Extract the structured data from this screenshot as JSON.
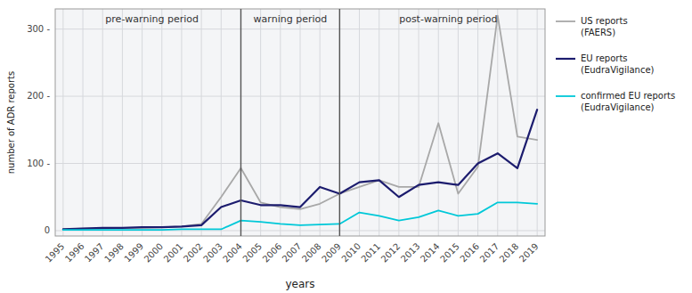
{
  "chart_data": {
    "type": "line",
    "x_label": "years",
    "y_label": "number of ADR reports",
    "x": [
      1995,
      1996,
      1997,
      1998,
      1999,
      2000,
      2001,
      2002,
      2003,
      2004,
      2005,
      2006,
      2007,
      2008,
      2009,
      2010,
      2011,
      2012,
      2013,
      2014,
      2015,
      2016,
      2017,
      2018,
      2019
    ],
    "series": [
      {
        "name": "US reports\n(FAERS)",
        "color": "#a8a8a8",
        "values": [
          2,
          3,
          3,
          4,
          4,
          5,
          6,
          10,
          50,
          93,
          42,
          35,
          32,
          40,
          55,
          65,
          75,
          65,
          65,
          160,
          55,
          95,
          320,
          140,
          135
        ]
      },
      {
        "name": "EU reports\n(EudraVigilance)",
        "color": "#1c1c6e",
        "values": [
          2,
          3,
          4,
          4,
          5,
          5,
          6,
          8,
          35,
          45,
          38,
          38,
          35,
          65,
          55,
          72,
          75,
          50,
          68,
          72,
          68,
          100,
          115,
          93,
          180
        ]
      },
      {
        "name": "confirmed EU reports\n(EudraVigilance)",
        "color": "#00c8d8",
        "values": [
          1,
          1,
          1,
          1,
          1,
          1,
          2,
          2,
          2,
          15,
          13,
          10,
          8,
          9,
          10,
          27,
          22,
          15,
          20,
          30,
          22,
          25,
          42,
          42,
          40
        ]
      }
    ],
    "vlines": [
      2004,
      2009
    ],
    "annotations": [
      {
        "text": "pre-warning period",
        "x": 1999.5
      },
      {
        "text": "warning period",
        "x": 2006.5
      },
      {
        "text": "post-warning period",
        "x": 2014.5
      }
    ],
    "xlim": [
      1994.6,
      2019.4
    ],
    "xticks": [
      1995,
      1996,
      1997,
      1998,
      1999,
      2000,
      2001,
      2002,
      2003,
      2004,
      2005,
      2006,
      2007,
      2008,
      2009,
      2010,
      2011,
      2012,
      2013,
      2014,
      2015,
      2016,
      2017,
      2018,
      2019
    ],
    "ylim": [
      -8,
      330
    ],
    "yticks": [
      0,
      {
        "value": 100,
        "label": "100 -"
      },
      {
        "value": 200,
        "label": "200 -"
      },
      {
        "value": 300,
        "label": "300 -"
      }
    ],
    "grid": true,
    "legend": "right"
  }
}
